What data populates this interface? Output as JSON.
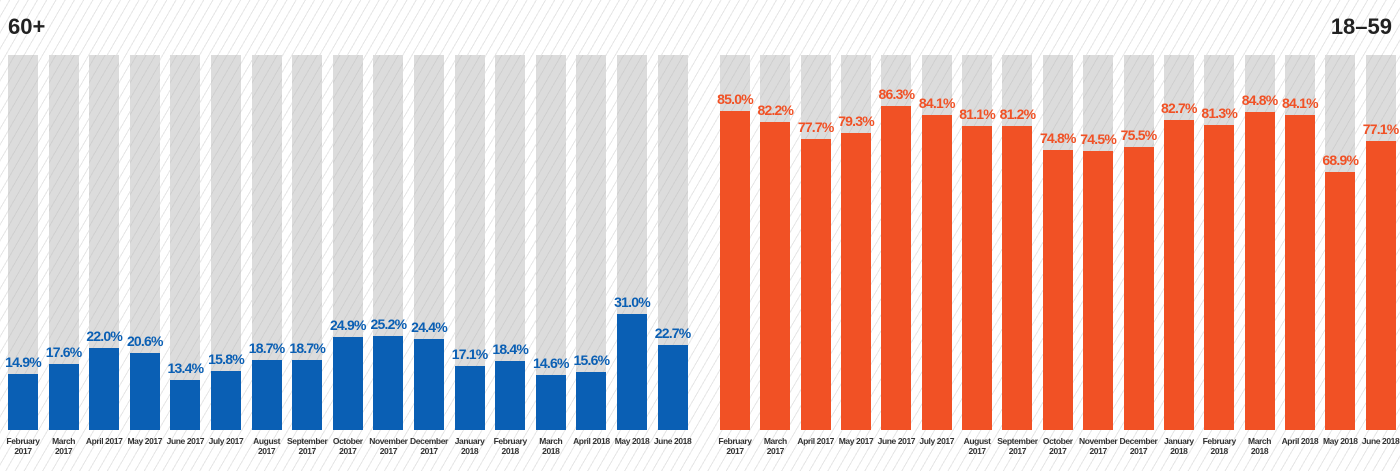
{
  "chart_data": [
    {
      "type": "bar",
      "title": "60+",
      "color": "#0a5fb4",
      "ylim": [
        0,
        100
      ],
      "categories": [
        "February 2017",
        "March 2017",
        "April 2017",
        "May 2017",
        "June 2017",
        "July 2017",
        "August 2017",
        "September 2017",
        "October 2017",
        "November 2017",
        "December 2017",
        "January 2018",
        "February 2018",
        "March 2018",
        "April 2018",
        "May 2018",
        "June 2018"
      ],
      "values": [
        14.9,
        17.6,
        22.0,
        20.6,
        13.4,
        15.8,
        18.7,
        18.7,
        24.9,
        25.2,
        24.4,
        17.1,
        18.4,
        14.6,
        15.6,
        31.0,
        22.7
      ],
      "value_labels": [
        "14.9%",
        "17.6%",
        "22.0%",
        "20.6%",
        "13.4%",
        "15.8%",
        "18.7%",
        "18.7%",
        "24.9%",
        "25.2%",
        "24.4%",
        "17.1%",
        "18.4%",
        "14.6%",
        "15.6%",
        "31.0%",
        "22.7%"
      ]
    },
    {
      "type": "bar",
      "title": "18–59",
      "color": "#f15125",
      "ylim": [
        0,
        100
      ],
      "categories": [
        "February 2017",
        "March 2017",
        "April 2017",
        "May 2017",
        "June 2017",
        "July 2017",
        "August 2017",
        "September 2017",
        "October 2017",
        "November 2017",
        "December 2017",
        "January 2018",
        "February 2018",
        "March 2018",
        "April 2018",
        "May 2018",
        "June 2018"
      ],
      "values": [
        85.0,
        82.2,
        77.7,
        79.3,
        86.3,
        84.1,
        81.1,
        81.2,
        74.8,
        74.5,
        75.5,
        82.7,
        81.3,
        84.8,
        84.1,
        68.9,
        77.1
      ],
      "value_labels": [
        "85.0%",
        "82.2%",
        "77.7%",
        "79.3%",
        "86.3%",
        "84.1%",
        "81.1%",
        "81.2%",
        "74.8%",
        "74.5%",
        "75.5%",
        "82.7%",
        "81.3%",
        "84.8%",
        "84.1%",
        "68.9%",
        "77.1%"
      ]
    }
  ]
}
